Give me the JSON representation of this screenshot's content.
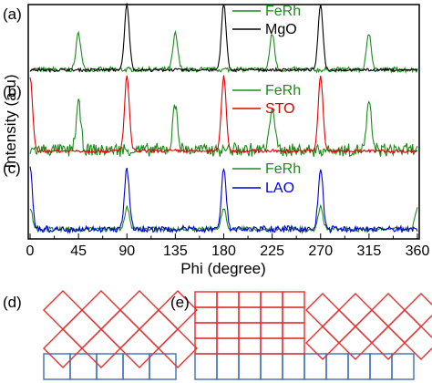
{
  "chart_data": {
    "type": "line",
    "xlabel": "Phi (degree)",
    "ylabel": "Intensity (a.u)",
    "xlim": [
      0,
      360
    ],
    "x_ticks": [
      "0",
      "45",
      "90",
      "135",
      "180",
      "225",
      "270",
      "315",
      "360"
    ],
    "x_tick_values": [
      0,
      45,
      90,
      135,
      180,
      225,
      270,
      315,
      360
    ],
    "y_scale": "arbitrary units, no tick labels",
    "grid": false,
    "legend_placement": "top-right",
    "panels": [
      {
        "label": "(a)",
        "series": [
          {
            "name": "FeRh",
            "color": "#1a8c1a",
            "peaks_phi": [
              45,
              135,
              225,
              315
            ],
            "peak_height": 0.55,
            "noise": 0.035
          },
          {
            "name": "MgO",
            "color": "#000000",
            "peaks_phi": [
              90,
              180,
              270
            ],
            "peak_height": 1.0,
            "noise": 0.02
          }
        ]
      },
      {
        "label": "(b)",
        "series": [
          {
            "name": "FeRh",
            "color": "#1a8c1a",
            "peaks_phi": [
              45,
              135,
              225,
              315
            ],
            "peak_height": 0.62,
            "noise": 0.08
          },
          {
            "name": "STO",
            "color": "#e00000",
            "peaks_phi": [
              0,
              90,
              180,
              270
            ],
            "peak_height": 1.0,
            "noise": 0.02
          }
        ]
      },
      {
        "label": "(c)",
        "series": [
          {
            "name": "FeRh",
            "color": "#1a8c1a",
            "peaks_phi": [
              0,
              90,
              180,
              270,
              360
            ],
            "peak_height": 0.3,
            "noise": 0.03
          },
          {
            "name": "LAO",
            "color": "#0000d0",
            "peaks_phi": [
              0,
              90,
              180,
              270
            ],
            "peak_height": 0.85,
            "noise": 0.04
          }
        ]
      }
    ]
  },
  "schematics": [
    {
      "label": "(d)",
      "top_lattice": "rotated 45 degrees",
      "top_color": "#e03030",
      "bottom_cells": 5,
      "bottom_color": "#3a6fb0"
    },
    {
      "label": "(e)",
      "left_grid": "aligned 4 rows x 5 cols",
      "right_lattice": "rotated 45 degrees",
      "top_color": "#e03030",
      "bottom_cells": 10,
      "bottom_color": "#3a6fb0"
    }
  ]
}
